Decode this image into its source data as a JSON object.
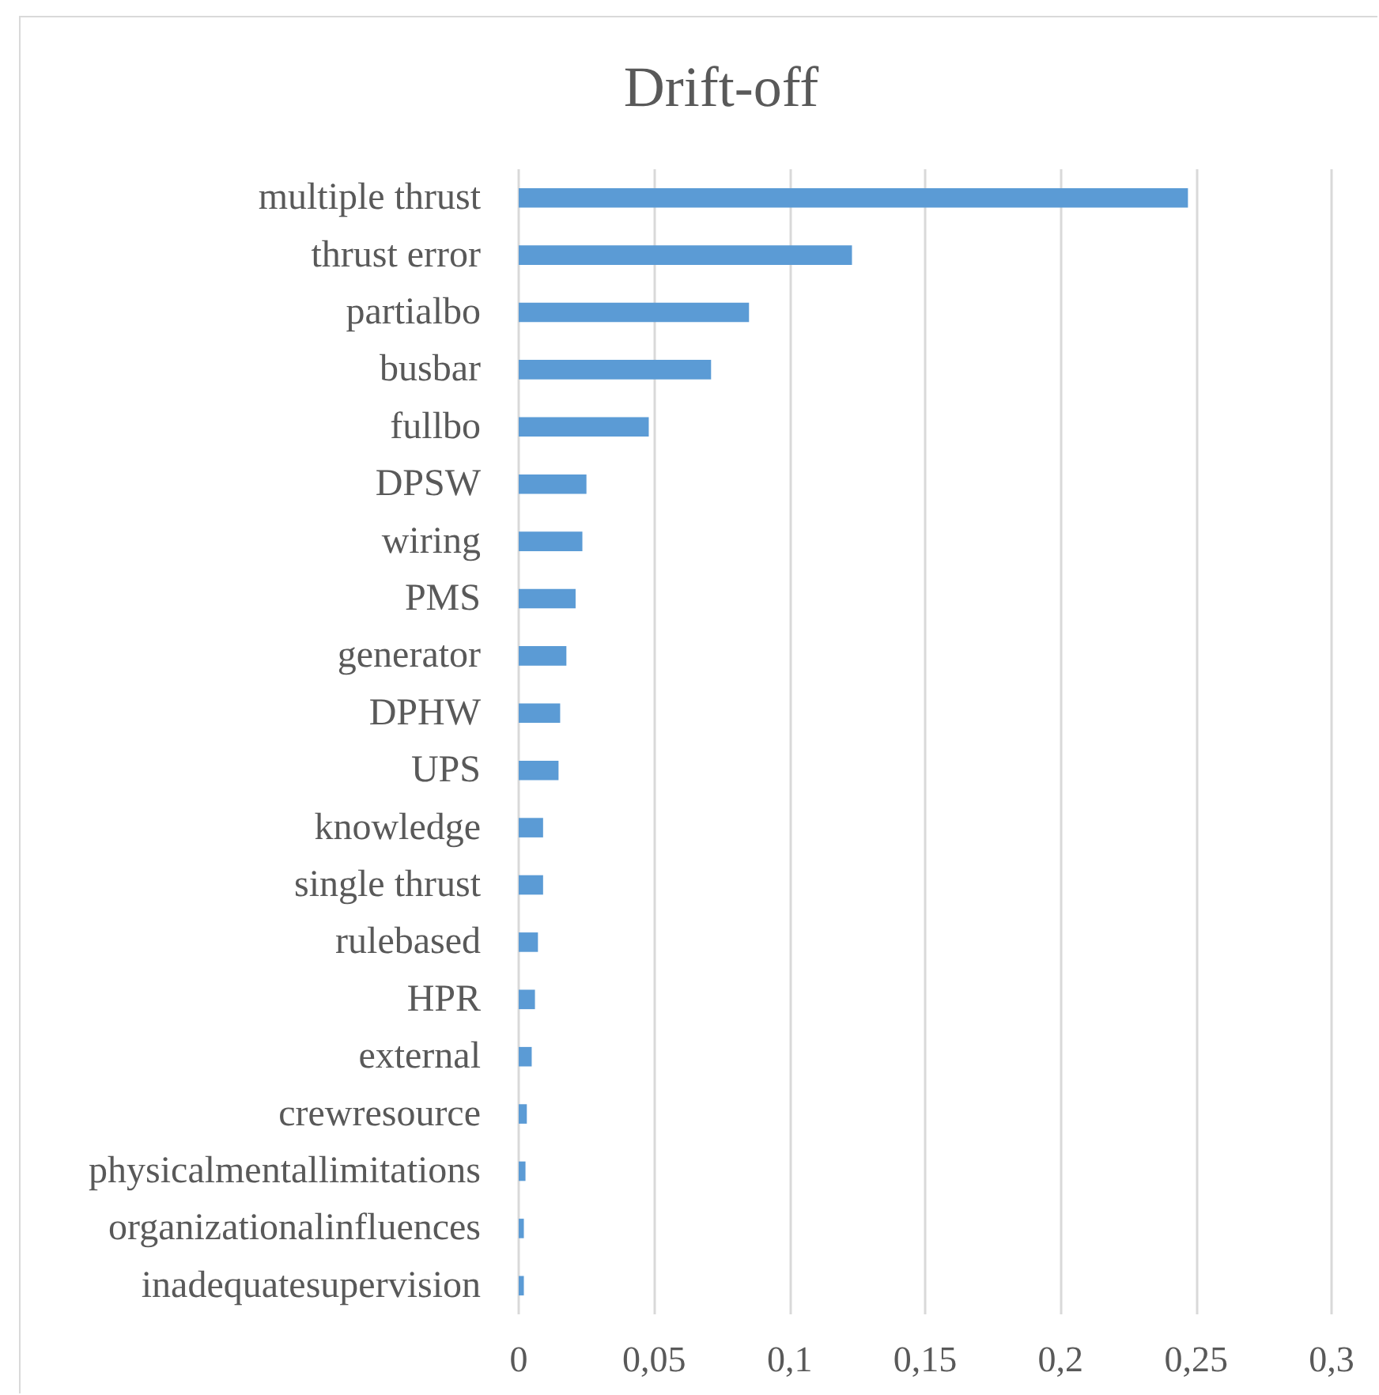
{
  "chart_data": {
    "type": "bar",
    "title": "Drift-off",
    "orientation": "horizontal",
    "categories": [
      "multiple thrust",
      "thrust error",
      "partialbo",
      "busbar",
      "fullbo",
      "DPSW",
      "wiring",
      "PMS",
      "generator",
      "DPHW",
      "UPS",
      "knowledge",
      "single thrust",
      "rulebased",
      "HPR",
      "external",
      "crewresource",
      "physicalmentallimitations",
      "organizationalinfluences",
      "inadequatesupervision"
    ],
    "values": [
      0.247,
      0.123,
      0.085,
      0.071,
      0.048,
      0.025,
      0.0235,
      0.021,
      0.0176,
      0.0153,
      0.0147,
      0.009,
      0.009,
      0.0071,
      0.006,
      0.0048,
      0.003,
      0.0025,
      0.0019,
      0.0019
    ],
    "color": "#5b9bd5",
    "xlim": [
      0,
      0.3
    ],
    "xticks": [
      0,
      {
        "value": 0.05,
        "label": "0,05"
      },
      {
        "value": 0.1,
        "label": "0,1"
      },
      {
        "value": 0.15,
        "label": "0,15"
      },
      {
        "value": 0.2,
        "label": "0,2"
      },
      {
        "value": 0.25,
        "label": "0,25"
      },
      {
        "value": 0.3,
        "label": "0,3"
      }
    ],
    "grid": "x"
  }
}
